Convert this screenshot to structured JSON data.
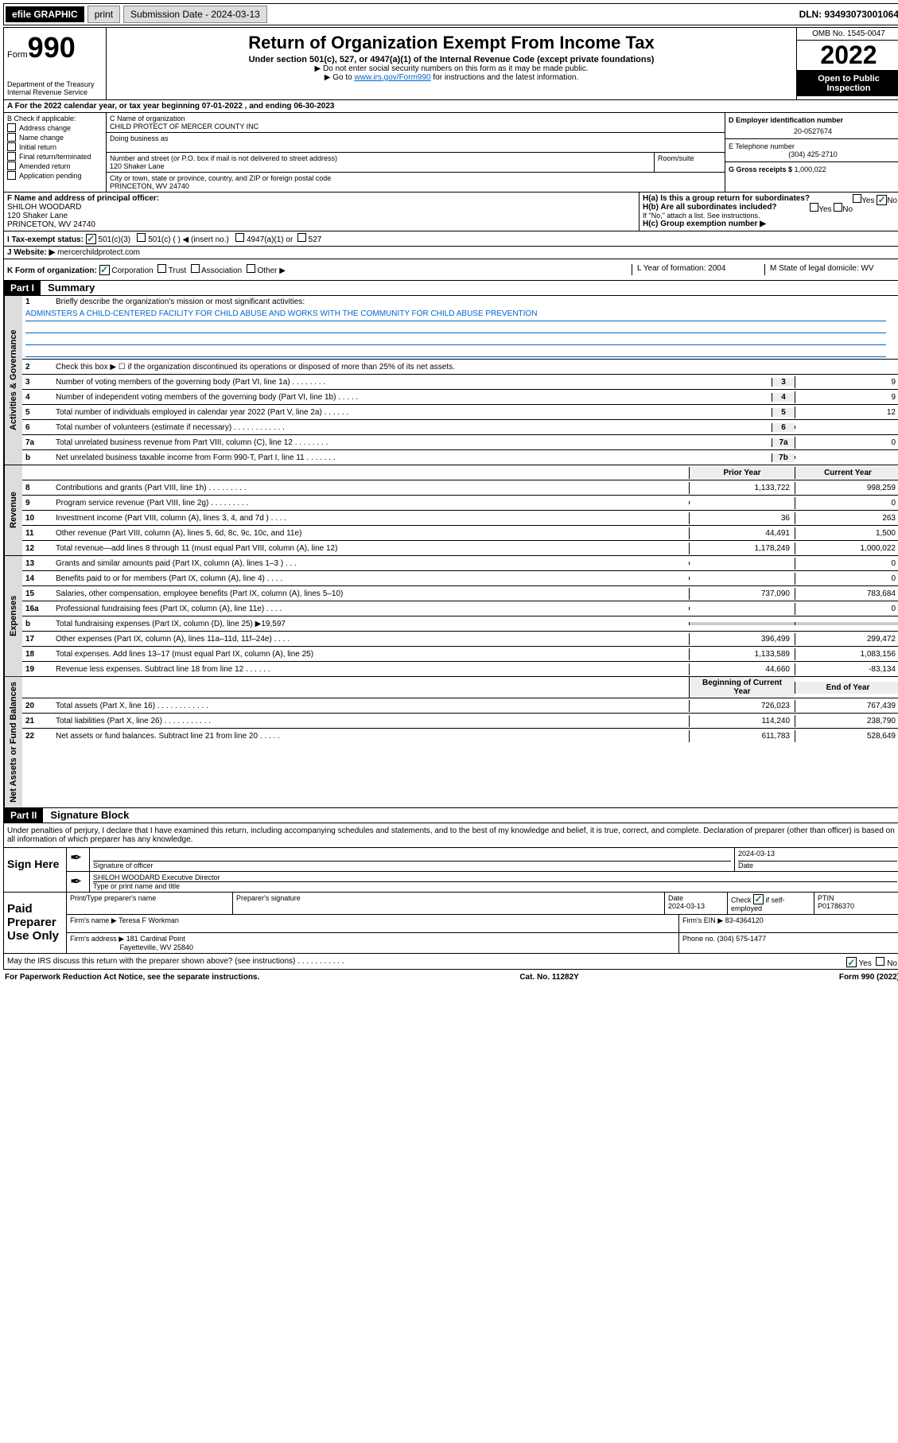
{
  "topbar": {
    "efile_label": "efile GRAPHIC",
    "print_btn": "print",
    "submission_label": "Submission Date - 2024-03-13",
    "dln": "DLN: 93493073001064"
  },
  "header": {
    "form_prefix": "Form",
    "form_num": "990",
    "dept": "Department of the Treasury",
    "irs": "Internal Revenue Service",
    "title": "Return of Organization Exempt From Income Tax",
    "sub1": "Under section 501(c), 527, or 4947(a)(1) of the Internal Revenue Code (except private foundations)",
    "sub2": "▶ Do not enter social security numbers on this form as it may be made public.",
    "sub3a": "▶ Go to ",
    "sub3_link": "www.irs.gov/Form990",
    "sub3b": " for instructions and the latest information.",
    "omb": "OMB No. 1545-0047",
    "year": "2022",
    "open1": "Open to Public",
    "open2": "Inspection"
  },
  "rowA": "A For the 2022 calendar year, or tax year beginning 07-01-2022   , and ending 06-30-2023",
  "colB": {
    "title": "B Check if applicable:",
    "items": [
      "Address change",
      "Name change",
      "Initial return",
      "Final return/terminated",
      "Amended return",
      "Application pending"
    ]
  },
  "colC": {
    "name_label": "C Name of organization",
    "name": "CHILD PROTECT OF MERCER COUNTY INC",
    "dba_label": "Doing business as",
    "street_label": "Number and street (or P.O. box if mail is not delivered to street address)",
    "room_label": "Room/suite",
    "street": "120 Shaker Lane",
    "city_label": "City or town, state or province, country, and ZIP or foreign postal code",
    "city": "PRINCETON, WV  24740"
  },
  "colD": {
    "ein_label": "D Employer identification number",
    "ein": "20-0527674",
    "phone_label": "E Telephone number",
    "phone": "(304) 425-2710",
    "gross_label": "G Gross receipts $",
    "gross": "1,000,022"
  },
  "rowF": {
    "label": "F  Name and address of principal officer:",
    "name": "SHILOH WOODARD",
    "addr1": "120 Shaker Lane",
    "addr2": "PRINCETON, WV  24740"
  },
  "rowH": {
    "ha": "H(a)  Is this a group return for subordinates?",
    "hb": "H(b)  Are all subordinates included?",
    "hb_note": "If \"No,\" attach a list. See instructions.",
    "hc": "H(c)  Group exemption number ▶",
    "yes": "Yes",
    "no": "No"
  },
  "rowI": {
    "label": "I   Tax-exempt status:",
    "opts": [
      "501(c)(3)",
      "501(c) (  ) ◀ (insert no.)",
      "4947(a)(1) or",
      "527"
    ]
  },
  "rowJ": {
    "label": "J  Website: ▶",
    "val": "mercerchildprotect.com"
  },
  "rowK": {
    "label": "K Form of organization:",
    "opts": [
      "Corporation",
      "Trust",
      "Association",
      "Other ▶"
    ],
    "L": "L Year of formation: 2004",
    "M": "M State of legal domicile: WV"
  },
  "partI": {
    "header": "Part I",
    "title": "Summary",
    "line1_label": "Briefly describe the organization's mission or most significant activities:",
    "mission": "ADMINSTERS A CHILD-CENTERED FACILITY FOR CHILD ABUSE AND WORKS WITH THE COMMUNITY FOR CHILD ABUSE PREVENTION",
    "line2": "Check this box ▶ ☐  if the organization discontinued its operations or disposed of more than 25% of its net assets.",
    "gov_lines": [
      {
        "n": "3",
        "t": "Number of voting members of the governing body (Part VI, line 1a)  .   .   .   .   .   .   .   .",
        "box": "3",
        "v": "9"
      },
      {
        "n": "4",
        "t": "Number of independent voting members of the governing body (Part VI, line 1b)  .   .   .   .   .",
        "box": "4",
        "v": "9"
      },
      {
        "n": "5",
        "t": "Total number of individuals employed in calendar year 2022 (Part V, line 2a)  .   .   .   .   .   .",
        "box": "5",
        "v": "12"
      },
      {
        "n": "6",
        "t": "Total number of volunteers (estimate if necessary)  .   .   .   .   .   .   .   .   .   .   .   .",
        "box": "6",
        "v": ""
      },
      {
        "n": "7a",
        "t": "Total unrelated business revenue from Part VIII, column (C), line 12  .   .   .   .   .   .   .   .",
        "box": "7a",
        "v": "0"
      },
      {
        "n": "b",
        "t": "Net unrelated business taxable income from Form 990-T, Part I, line 11  .   .   .   .   .   .   .",
        "box": "7b",
        "v": ""
      }
    ],
    "col_prior": "Prior Year",
    "col_current": "Current Year",
    "rev_lines": [
      {
        "n": "8",
        "t": "Contributions and grants (Part VIII, line 1h)  .   .   .   .   .   .   .   .   .",
        "p": "1,133,722",
        "c": "998,259"
      },
      {
        "n": "9",
        "t": "Program service revenue (Part VIII, line 2g)  .   .   .   .   .   .   .   .   .",
        "p": "",
        "c": "0"
      },
      {
        "n": "10",
        "t": "Investment income (Part VIII, column (A), lines 3, 4, and 7d )  .   .   .   .",
        "p": "36",
        "c": "263"
      },
      {
        "n": "11",
        "t": "Other revenue (Part VIII, column (A), lines 5, 6d, 8c, 9c, 10c, and 11e)",
        "p": "44,491",
        "c": "1,500"
      },
      {
        "n": "12",
        "t": "Total revenue—add lines 8 through 11 (must equal Part VIII, column (A), line 12)",
        "p": "1,178,249",
        "c": "1,000,022"
      }
    ],
    "exp_lines": [
      {
        "n": "13",
        "t": "Grants and similar amounts paid (Part IX, column (A), lines 1–3 )  .   .   .",
        "p": "",
        "c": "0"
      },
      {
        "n": "14",
        "t": "Benefits paid to or for members (Part IX, column (A), line 4)  .   .   .   .",
        "p": "",
        "c": "0"
      },
      {
        "n": "15",
        "t": "Salaries, other compensation, employee benefits (Part IX, column (A), lines 5–10)",
        "p": "737,090",
        "c": "783,684"
      },
      {
        "n": "16a",
        "t": "Professional fundraising fees (Part IX, column (A), line 11e)  .   .   .   .",
        "p": "",
        "c": "0"
      },
      {
        "n": "b",
        "t": "Total fundraising expenses (Part IX, column (D), line 25) ▶19,597",
        "p": "__shade__",
        "c": "__shade__"
      },
      {
        "n": "17",
        "t": "Other expenses (Part IX, column (A), lines 11a–11d, 11f–24e)  .   .   .   .",
        "p": "396,499",
        "c": "299,472"
      },
      {
        "n": "18",
        "t": "Total expenses. Add lines 13–17 (must equal Part IX, column (A), line 25)",
        "p": "1,133,589",
        "c": "1,083,156"
      },
      {
        "n": "19",
        "t": "Revenue less expenses. Subtract line 18 from line 12  .   .   .   .   .   .",
        "p": "44,660",
        "c": "-83,134"
      }
    ],
    "col_begin": "Beginning of Current Year",
    "col_end": "End of Year",
    "net_lines": [
      {
        "n": "20",
        "t": "Total assets (Part X, line 16)  .   .   .   .   .   .   .   .   .   .   .   .",
        "p": "726,023",
        "c": "767,439"
      },
      {
        "n": "21",
        "t": "Total liabilities (Part X, line 26)  .   .   .   .   .   .   .   .   .   .   .",
        "p": "114,240",
        "c": "238,790"
      },
      {
        "n": "22",
        "t": "Net assets or fund balances. Subtract line 21 from line 20  .   .   .   .   .",
        "p": "611,783",
        "c": "528,649"
      }
    ],
    "tabs": {
      "gov": "Activities & Governance",
      "rev": "Revenue",
      "exp": "Expenses",
      "net": "Net Assets or Fund Balances"
    }
  },
  "partII": {
    "header": "Part II",
    "title": "Signature Block",
    "decl": "Under penalties of perjury, I declare that I have examined this return, including accompanying schedules and statements, and to the best of my knowledge and belief, it is true, correct, and complete. Declaration of preparer (other than officer) is based on all information of which preparer has any knowledge.",
    "sign_here": "Sign Here",
    "sig_officer": "Signature of officer",
    "date": "Date",
    "date_val": "2024-03-13",
    "officer_name": "SHILOH WOODARD Executive Director",
    "type_name": "Type or print name and title",
    "paid": "Paid Preparer Use Only",
    "prep_name_h": "Print/Type preparer's name",
    "prep_sig_h": "Preparer's signature",
    "prep_date_h": "Date",
    "prep_date": "2024-03-13",
    "check_if": "Check",
    "self_emp": "if self-employed",
    "ptin_h": "PTIN",
    "ptin": "P01786370",
    "firm_name_l": "Firm's name    ▶",
    "firm_name": "Teresa F Workman",
    "firm_ein_l": "Firm's EIN ▶",
    "firm_ein": "83-4364120",
    "firm_addr_l": "Firm's address ▶",
    "firm_addr1": "181 Cardinal Point",
    "firm_addr2": "Fayetteville, WV  25840",
    "firm_phone_l": "Phone no.",
    "firm_phone": "(304) 575-1477",
    "may_irs": "May the IRS discuss this return with the preparer shown above? (see instructions)  .   .   .   .   .   .   .   .   .   .   .",
    "yes": "Yes",
    "no": "No"
  },
  "footer": {
    "left": "For Paperwork Reduction Act Notice, see the separate instructions.",
    "mid": "Cat. No. 11282Y",
    "right": "Form 990 (2022)"
  }
}
